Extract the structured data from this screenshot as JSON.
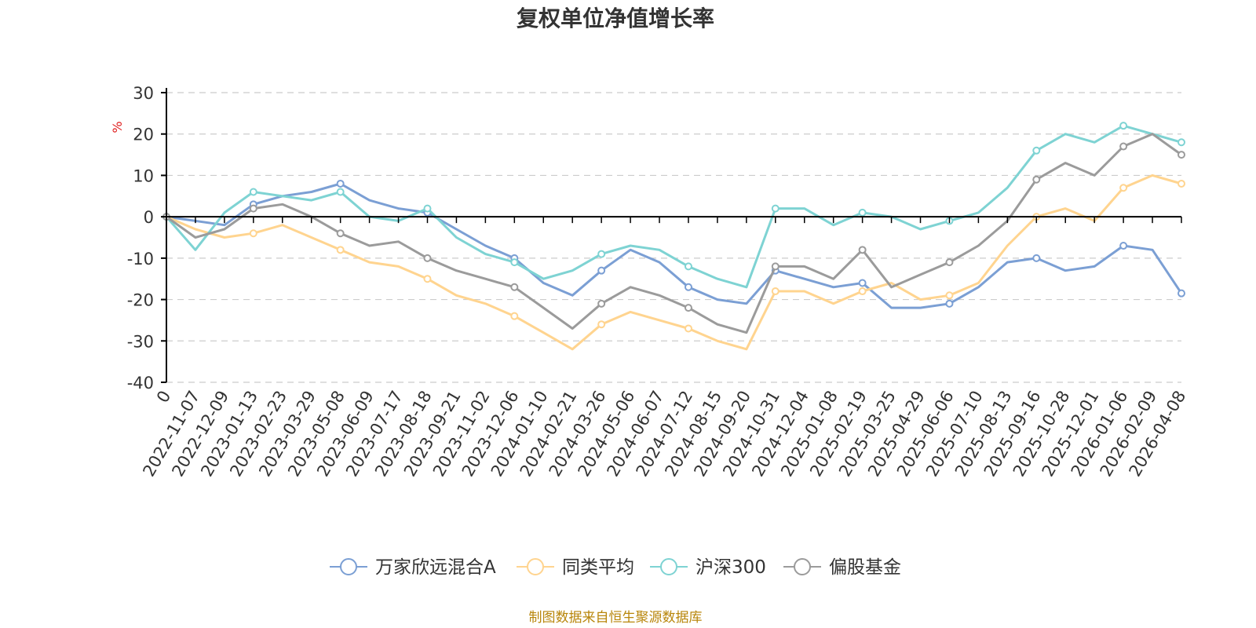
{
  "chart_data": {
    "type": "line",
    "title": "复权单位净值增长率",
    "ylabel": "%",
    "xlabel": "",
    "ylim": [
      -40,
      30
    ],
    "yticks": [
      30,
      20,
      10,
      0,
      -10,
      -20,
      -30,
      -40
    ],
    "grid": true,
    "legend_position": "bottom",
    "categories": [
      "0",
      "2022-11-07",
      "2022-12-09",
      "2023-01-13",
      "2023-02-23",
      "2023-03-29",
      "2023-05-08",
      "2023-06-09",
      "2023-07-17",
      "2023-08-18",
      "2023-09-21",
      "2023-11-02",
      "2023-12-06",
      "2024-01-10",
      "2024-02-21",
      "2024-03-26",
      "2024-05-06",
      "2024-06-07",
      "2024-07-12",
      "2024-08-15",
      "2024-09-20",
      "2024-10-31",
      "2024-12-04",
      "2025-01-08",
      "2025-02-19",
      "2025-03-25",
      "2025-04-29",
      "2025-06-06",
      "2025-07-10",
      "2025-08-13",
      "2025-09-16",
      "2025-10-28",
      "2025-12-01",
      "2026-01-06",
      "2026-02-09",
      "2026-04-08"
    ],
    "series": [
      {
        "name": "万家欣远混合A",
        "color": "#7b9fd4",
        "values": [
          0,
          -1,
          -2,
          3,
          5,
          6,
          8,
          4,
          2,
          1,
          -3,
          -7,
          -10,
          -16,
          -19,
          -13,
          -8,
          -11,
          -17,
          -20,
          -21,
          -13,
          -15,
          -17,
          -16,
          -22,
          -22,
          -21,
          -17,
          -11,
          -10,
          -13,
          -12,
          -7,
          -8,
          -18.5
        ]
      },
      {
        "name": "同类平均",
        "color": "#ffd48f",
        "values": [
          0,
          -3,
          -5,
          -4,
          -2,
          -5,
          -8,
          -11,
          -12,
          -15,
          -19,
          -21,
          -24,
          -28,
          -32,
          -26,
          -23,
          -25,
          -27,
          -30,
          -32,
          -18,
          -18,
          -21,
          -18,
          -16,
          -20,
          -19,
          -16,
          -7,
          0,
          2,
          -1,
          7,
          10,
          8
        ]
      },
      {
        "name": "沪深300",
        "color": "#7ed3d3",
        "values": [
          0,
          -8,
          1,
          6,
          5,
          4,
          6,
          0,
          -1,
          2,
          -5,
          -9,
          -11,
          -15,
          -13,
          -9,
          -7,
          -8,
          -12,
          -15,
          -17,
          2,
          2,
          -2,
          1,
          0,
          -3,
          -1,
          1,
          7,
          16,
          20,
          18,
          22,
          20,
          18
        ]
      },
      {
        "name": "偏股基金",
        "color": "#9b9b9b",
        "values": [
          0,
          -5,
          -3,
          2,
          3,
          0,
          -4,
          -7,
          -6,
          -10,
          -13,
          -15,
          -17,
          -22,
          -27,
          -21,
          -17,
          -19,
          -22,
          -26,
          -28,
          -12,
          -12,
          -15,
          -8,
          -17,
          -14,
          -11,
          -7,
          -1,
          9,
          13,
          10,
          17,
          20,
          15
        ]
      }
    ]
  },
  "source": {
    "text": "制图数据来自恒生聚源数据库"
  }
}
